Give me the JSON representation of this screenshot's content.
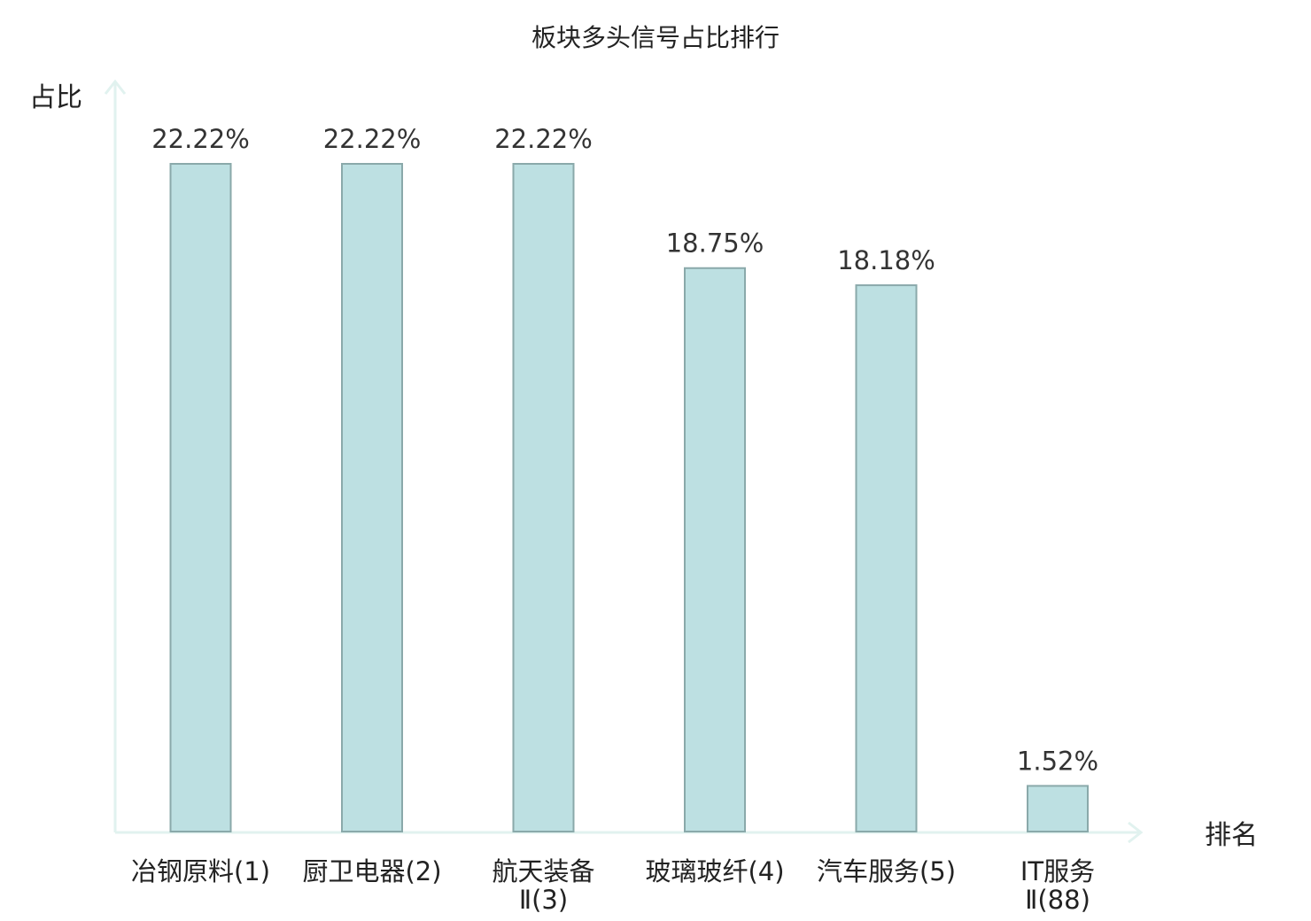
{
  "chart_data": {
    "type": "bar",
    "title": "板块多头信号占比排行",
    "xlabel": "排名",
    "ylabel": "占比",
    "categories": [
      [
        "冶钢原料(1)"
      ],
      [
        "厨卫电器(2)"
      ],
      [
        "航天装备",
        "Ⅱ(3)"
      ],
      [
        "玻璃玻纤(4)"
      ],
      [
        "汽车服务(5)"
      ],
      [
        "IT服务",
        "Ⅱ(88)"
      ]
    ],
    "values": [
      22.22,
      22.22,
      22.22,
      18.75,
      18.18,
      1.52
    ],
    "value_labels": [
      "22.22%",
      "22.22%",
      "22.22%",
      "18.75%",
      "18.18%",
      "1.52%"
    ],
    "highlight_index": 5,
    "ylim": [
      0,
      22.22
    ],
    "grid": false,
    "legend": "none"
  },
  "colors": {
    "bar_fill": "#bde0e2",
    "bar_stroke": "#8aa9aa",
    "axis": "#e1f2ef",
    "text": "#222222",
    "highlight_text": "#e02020"
  }
}
